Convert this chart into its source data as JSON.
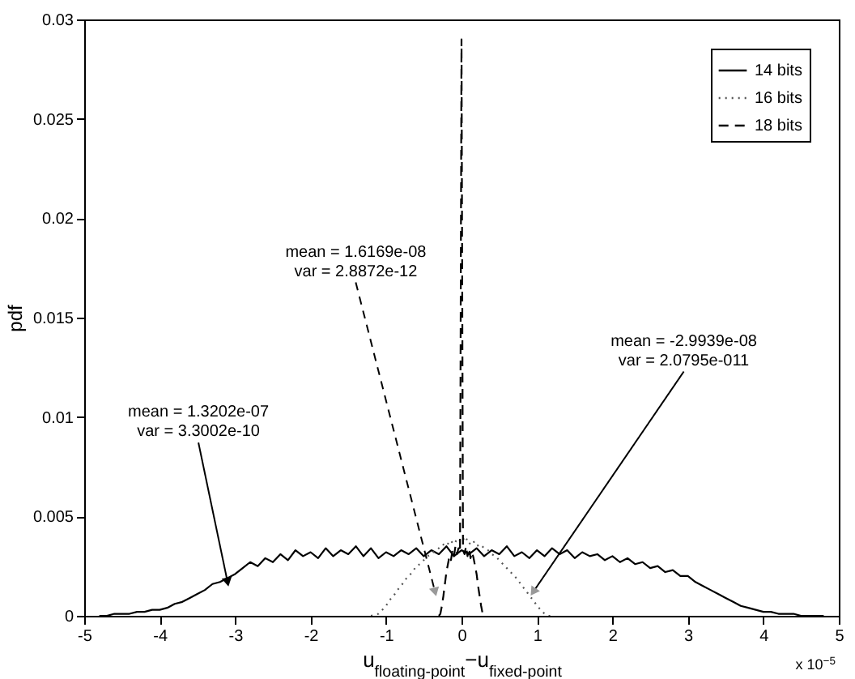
{
  "chart_data": {
    "type": "line",
    "xlabel": "u$_{floating-point}$−u$_{fixed-point}$",
    "ylabel": "pdf",
    "xlim": [
      -5,
      5
    ],
    "xticks": [
      -5,
      -4,
      -3,
      -2,
      -1,
      0,
      1,
      2,
      3,
      4,
      5
    ],
    "ylim": [
      0,
      0.03
    ],
    "yticks": [
      0,
      0.005,
      0.01,
      0.015,
      0.02,
      0.025,
      0.03
    ],
    "grid": false,
    "legend": "top right",
    "series": [
      {
        "name": "14 bits",
        "color": "#000000",
        "line_style": "solid",
        "x": [
          -4.8,
          -4.7,
          -4.6,
          -4.5,
          -4.4,
          -4.3,
          -4.2,
          -4.1,
          -4.0,
          -3.9,
          -3.8,
          -3.7,
          -3.6,
          -3.5,
          -3.4,
          -3.3,
          -3.2,
          -3.1,
          -3.0,
          -2.9,
          -2.8,
          -2.7,
          -2.6,
          -2.5,
          -2.4,
          -2.3,
          -2.2,
          -2.1,
          -2.0,
          -1.9,
          -1.8,
          -1.7,
          -1.6,
          -1.5,
          -1.4,
          -1.3,
          -1.2,
          -1.1,
          -1.0,
          -0.9,
          -0.8,
          -0.7,
          -0.6,
          -0.5,
          -0.4,
          -0.3,
          -0.2,
          -0.1,
          0,
          0.1,
          0.2,
          0.3,
          0.4,
          0.5,
          0.6,
          0.7,
          0.8,
          0.9,
          1.0,
          1.1,
          1.2,
          1.3,
          1.4,
          1.5,
          1.6,
          1.7,
          1.8,
          1.9,
          2.0,
          2.1,
          2.2,
          2.3,
          2.4,
          2.5,
          2.6,
          2.7,
          2.8,
          2.9,
          3.0,
          3.1,
          3.2,
          3.3,
          3.4,
          3.5,
          3.6,
          3.7,
          3.8,
          3.9,
          4.0,
          4.1,
          4.2,
          4.3,
          4.4,
          4.5,
          4.6,
          4.7,
          4.8
        ],
        "values": [
          0,
          0,
          0.0001,
          0.0001,
          0.0001,
          0.0002,
          0.0002,
          0.0003,
          0.0003,
          0.0004,
          0.0006,
          0.0007,
          0.0009,
          0.0011,
          0.0013,
          0.0016,
          0.0017,
          0.0019,
          0.0021,
          0.0024,
          0.0027,
          0.0025,
          0.0029,
          0.0027,
          0.0031,
          0.0028,
          0.0033,
          0.003,
          0.0032,
          0.0029,
          0.0034,
          0.003,
          0.0033,
          0.0031,
          0.0035,
          0.003,
          0.0034,
          0.0029,
          0.0032,
          0.003,
          0.0033,
          0.0031,
          0.0034,
          0.003,
          0.0033,
          0.0031,
          0.0035,
          0.003,
          0.0033,
          0.0031,
          0.0034,
          0.003,
          0.0033,
          0.0031,
          0.0035,
          0.003,
          0.0032,
          0.0029,
          0.0033,
          0.003,
          0.0034,
          0.0031,
          0.0033,
          0.0029,
          0.0032,
          0.003,
          0.0031,
          0.0028,
          0.003,
          0.0027,
          0.0029,
          0.0026,
          0.0027,
          0.0024,
          0.0025,
          0.0022,
          0.0023,
          0.002,
          0.002,
          0.0017,
          0.0015,
          0.0013,
          0.0011,
          0.0009,
          0.0007,
          0.0005,
          0.0004,
          0.0003,
          0.0002,
          0.0002,
          0.0001,
          0.0001,
          0.0001,
          0,
          0,
          0,
          0
        ]
      },
      {
        "name": "16 bits",
        "color": "#555555",
        "line_style": "dotted",
        "x": [
          -1.2,
          -1.1,
          -1.05,
          -1.0,
          -0.95,
          -0.9,
          -0.85,
          -0.8,
          -0.75,
          -0.7,
          -0.65,
          -0.6,
          -0.55,
          -0.5,
          -0.45,
          -0.4,
          -0.35,
          -0.3,
          -0.25,
          -0.2,
          -0.15,
          -0.1,
          -0.05,
          0,
          0.05,
          0.1,
          0.15,
          0.2,
          0.25,
          0.3,
          0.35,
          0.4,
          0.45,
          0.5,
          0.55,
          0.6,
          0.65,
          0.7,
          0.75,
          0.8,
          0.85,
          0.9,
          0.95,
          1.0,
          1.05,
          1.1,
          1.15,
          1.2
        ],
        "values": [
          0,
          0.0001,
          0.0003,
          0.0005,
          0.0008,
          0.001,
          0.0013,
          0.0015,
          0.0018,
          0.002,
          0.0022,
          0.0025,
          0.0026,
          0.0028,
          0.003,
          0.0031,
          0.0033,
          0.0034,
          0.0036,
          0.0035,
          0.0038,
          0.0036,
          0.0039,
          0.0037,
          0.004,
          0.0036,
          0.0038,
          0.0035,
          0.0036,
          0.0034,
          0.0033,
          0.0031,
          0.003,
          0.0028,
          0.0026,
          0.0024,
          0.0022,
          0.002,
          0.0018,
          0.0015,
          0.0013,
          0.001,
          0.0008,
          0.0005,
          0.0003,
          0.0001,
          0,
          0
        ]
      },
      {
        "name": "18 bits",
        "color": "#000000",
        "line_style": "dashed",
        "x": [
          -0.3,
          -0.28,
          -0.26,
          -0.24,
          -0.22,
          -0.2,
          -0.18,
          -0.16,
          -0.14,
          -0.12,
          -0.1,
          -0.08,
          -0.06,
          -0.04,
          -0.02,
          0,
          0.02,
          0.04,
          0.06,
          0.08,
          0.1,
          0.12,
          0.14,
          0.16,
          0.18,
          0.2,
          0.22,
          0.24,
          0.26,
          0.28,
          0.3
        ],
        "values": [
          0,
          0.0001,
          0.0005,
          0.001,
          0.0016,
          0.0022,
          0.0026,
          0.003,
          0.0028,
          0.0033,
          0.003,
          0.0035,
          0.0031,
          0.0034,
          0.0032,
          0.029,
          0.0033,
          0.0031,
          0.0035,
          0.003,
          0.0034,
          0.0029,
          0.0032,
          0.0029,
          0.0025,
          0.0021,
          0.0015,
          0.001,
          0.0005,
          0.0001,
          0
        ]
      }
    ],
    "annotations": [
      {
        "text": "mean = 1.3202e-07\nvar = 3.3002e-10",
        "x": -3.1,
        "y": 0.0017
      },
      {
        "text": "mean = 1.6169e-08\nvar = 2.8872e-12",
        "x": -0.35,
        "y": 0.0012
      },
      {
        "text": "mean = -2.9939e-08\nvar = 2.0795e-011",
        "x": 0.95,
        "y": 0.0012
      },
      "x 10$^{−5}$"
    ]
  }
}
